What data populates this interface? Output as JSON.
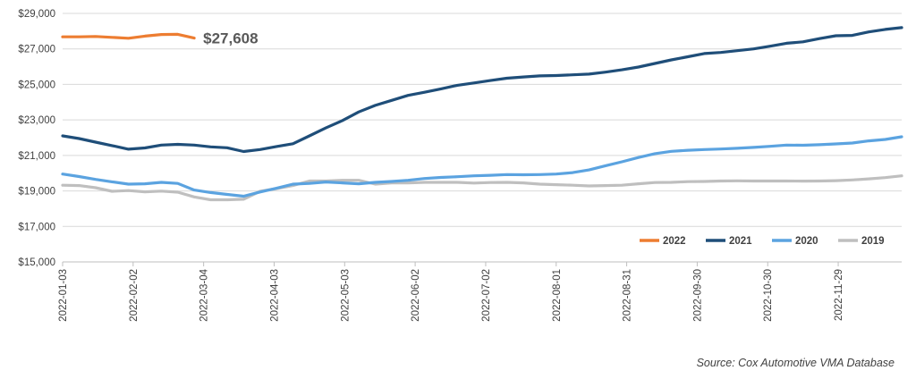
{
  "chart_data": {
    "type": "line",
    "title": "",
    "xlabel": "",
    "ylabel": "",
    "x_dates": [
      "2022-01-03",
      "2022-01-10",
      "2022-01-17",
      "2022-01-24",
      "2022-01-31",
      "2022-02-07",
      "2022-02-14",
      "2022-02-21",
      "2022-02-28",
      "2022-03-07",
      "2022-03-14",
      "2022-03-21",
      "2022-03-28",
      "2022-04-04",
      "2022-04-11",
      "2022-04-18",
      "2022-04-25",
      "2022-05-02",
      "2022-05-09",
      "2022-05-16",
      "2022-05-23",
      "2022-05-30",
      "2022-06-06",
      "2022-06-13",
      "2022-06-20",
      "2022-06-27",
      "2022-07-04",
      "2022-07-11",
      "2022-07-18",
      "2022-07-25",
      "2022-08-01",
      "2022-08-08",
      "2022-08-15",
      "2022-08-22",
      "2022-08-29",
      "2022-09-05",
      "2022-09-12",
      "2022-09-19",
      "2022-09-26",
      "2022-10-03",
      "2022-10-10",
      "2022-10-17",
      "2022-10-24",
      "2022-10-31",
      "2022-11-07",
      "2022-11-14",
      "2022-11-21",
      "2022-11-28",
      "2022-12-05",
      "2022-12-12",
      "2022-12-19",
      "2022-12-26"
    ],
    "x_ticks": [
      "2022-01-03",
      "2022-02-02",
      "2022-03-04",
      "2022-04-03",
      "2022-05-03",
      "2022-06-02",
      "2022-07-02",
      "2022-08-01",
      "2022-08-31",
      "2022-09-30",
      "2022-10-30",
      "2022-11-29"
    ],
    "ylim": [
      15000,
      29000
    ],
    "y_ticks": [
      15000,
      17000,
      19000,
      21000,
      23000,
      25000,
      27000,
      29000
    ],
    "y_tick_labels": [
      "$15,000",
      "$17,000",
      "$19,000",
      "$21,000",
      "$23,000",
      "$25,000",
      "$27,000",
      "$29,000"
    ],
    "grid": "horizontal",
    "legend_position": "bottom-right",
    "series": [
      {
        "name": "2022",
        "color": "#ED7D31",
        "values": [
          27680,
          27680,
          27700,
          27650,
          27600,
          27720,
          27810,
          27820,
          27608
        ]
      },
      {
        "name": "2021",
        "color": "#1F4E79",
        "values": [
          22100,
          21950,
          21750,
          21550,
          21350,
          21420,
          21580,
          21620,
          21580,
          21480,
          21430,
          21220,
          21330,
          21500,
          21660,
          22100,
          22550,
          22960,
          23450,
          23820,
          24100,
          24380,
          24560,
          24750,
          24950,
          25080,
          25220,
          25350,
          25420,
          25480,
          25500,
          25540,
          25580,
          25690,
          25820,
          25980,
          26180,
          26380,
          26560,
          26740,
          26800,
          26900,
          27000,
          27150,
          27320,
          27400,
          27580,
          27740,
          27760,
          27960,
          28100,
          28200
        ]
      },
      {
        "name": "2020",
        "color": "#5BA3E0",
        "values": [
          19950,
          19810,
          19650,
          19510,
          19380,
          19400,
          19480,
          19420,
          19050,
          18910,
          18800,
          18700,
          18940,
          19150,
          19380,
          19420,
          19500,
          19450,
          19400,
          19480,
          19530,
          19600,
          19700,
          19760,
          19800,
          19850,
          19880,
          19920,
          19910,
          19920,
          19950,
          20030,
          20180,
          20420,
          20640,
          20880,
          21100,
          21230,
          21290,
          21330,
          21360,
          21400,
          21450,
          21510,
          21580,
          21570,
          21600,
          21650,
          21700,
          21820,
          21900,
          22050
        ]
      },
      {
        "name": "2019",
        "color": "#BFBFBF",
        "values": [
          19320,
          19300,
          19180,
          18980,
          19020,
          18950,
          18990,
          18930,
          18660,
          18500,
          18500,
          18530,
          18980,
          19130,
          19300,
          19560,
          19560,
          19600,
          19600,
          19380,
          19450,
          19450,
          19480,
          19480,
          19480,
          19440,
          19470,
          19480,
          19450,
          19380,
          19350,
          19320,
          19280,
          19300,
          19320,
          19400,
          19470,
          19480,
          19520,
          19530,
          19560,
          19570,
          19560,
          19560,
          19560,
          19550,
          19560,
          19580,
          19620,
          19680,
          19750,
          19850
        ]
      }
    ],
    "annotations": [
      {
        "text": "$27,608",
        "series": "2022",
        "at": "last-point"
      }
    ]
  },
  "source": {
    "label": "Source:",
    "text": "Cox Automotive VMA Database"
  }
}
